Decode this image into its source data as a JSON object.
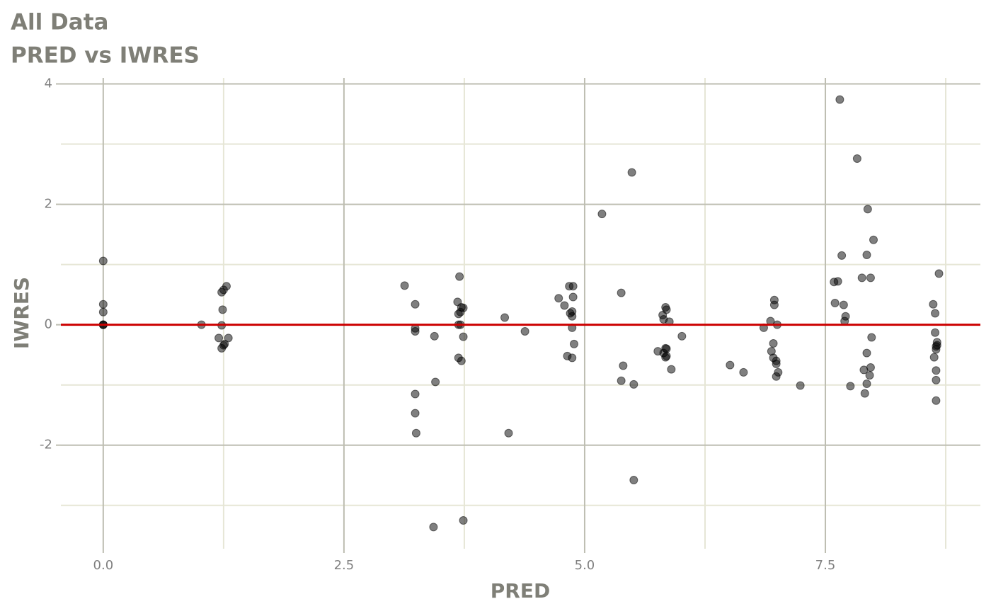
{
  "chart_data": {
    "type": "scatter",
    "title": "All Data",
    "subtitle": "PRED vs IWRES",
    "x_label": "PRED",
    "y_label": "IWRES",
    "xlim": [
      -0.44,
      9.11
    ],
    "ylim": [
      -3.72,
      4.1
    ],
    "xticks": [
      {
        "value": 0,
        "label": "0.0"
      },
      {
        "value": 2.5,
        "label": "2.5"
      },
      {
        "value": 5,
        "label": "5.0"
      },
      {
        "value": 7.5,
        "label": "7.5"
      }
    ],
    "yticks": [
      -2,
      0,
      2,
      4
    ],
    "xminor_ticks": [
      1.25,
      3.75,
      6.25,
      8.75
    ],
    "yminor_ticks": [
      -3,
      -1,
      1,
      3
    ],
    "grid": true,
    "color": "#000000",
    "opacity": 0.5,
    "hline": {
      "value": 0,
      "color": "#cc0000"
    },
    "x": [
      0,
      0,
      0,
      0,
      0,
      0,
      1.02,
      1.23,
      1.25,
      1.28,
      1.24,
      1.23,
      1.2,
      1.23,
      1.26,
      1.25,
      1.3,
      3.13,
      3.24,
      3.24,
      3.24,
      3.24,
      3.24,
      3.25,
      3.44,
      3.45,
      3.43,
      3.7,
      3.68,
      3.69,
      3.71,
      3.72,
      3.74,
      3.69,
      3.71,
      3.74,
      3.69,
      3.72,
      3.74,
      4.17,
      4.21,
      4.38,
      4.73,
      4.79,
      4.84,
      4.88,
      4.88,
      4.87,
      4.85,
      4.87,
      4.87,
      4.89,
      4.82,
      4.87,
      5.18,
      5.49,
      5.38,
      5.4,
      5.38,
      5.51,
      5.51,
      5.81,
      5.82,
      5.84,
      5.85,
      5.88,
      6.01,
      5.76,
      5.84,
      5.85,
      5.82,
      5.85,
      5.84,
      5.9,
      6.51,
      6.65,
      6.86,
      6.93,
      6.97,
      6.97,
      7.0,
      6.96,
      6.94,
      6.96,
      6.99,
      6.99,
      7.01,
      6.99,
      7.24,
      7.65,
      7.83,
      7.94,
      8.0,
      7.67,
      7.93,
      7.59,
      7.63,
      7.88,
      7.97,
      7.6,
      7.69,
      7.71,
      7.7,
      7.98,
      7.93,
      7.97,
      7.9,
      7.96,
      7.76,
      7.93,
      7.91,
      8.68,
      8.62,
      8.64,
      8.64,
      8.66,
      8.66,
      8.65,
      8.65,
      8.63,
      8.65,
      8.65,
      8.65
    ],
    "values": [
      1.06,
      0.34,
      0.21,
      0,
      0,
      0,
      0,
      0.54,
      0.58,
      0.64,
      0.25,
      -0.01,
      -0.22,
      -0.39,
      -0.32,
      -0.34,
      -0.22,
      0.65,
      0.34,
      -0.06,
      -0.11,
      -1.15,
      -1.47,
      -1.8,
      -0.19,
      -0.95,
      -3.36,
      0.8,
      0.38,
      0.18,
      0.21,
      0.29,
      0.28,
      0,
      0,
      -0.2,
      -0.55,
      -0.6,
      -3.25,
      0.12,
      -1.8,
      -0.11,
      0.44,
      0.32,
      0.64,
      0.64,
      0.46,
      0.22,
      0.19,
      0.14,
      -0.05,
      -0.32,
      -0.52,
      -0.55,
      1.84,
      2.53,
      0.53,
      -0.68,
      -0.93,
      -0.99,
      -2.58,
      0.16,
      0.09,
      0.29,
      0.25,
      0.05,
      -0.19,
      -0.44,
      -0.39,
      -0.4,
      -0.47,
      -0.52,
      -0.54,
      -0.74,
      -0.67,
      -0.79,
      -0.05,
      0.06,
      0.41,
      0.33,
      0,
      -0.31,
      -0.44,
      -0.55,
      -0.6,
      -0.65,
      -0.79,
      -0.86,
      -1.01,
      3.74,
      2.76,
      1.92,
      1.41,
      1.15,
      1.16,
      0.71,
      0.72,
      0.78,
      0.78,
      0.36,
      0.33,
      0.14,
      0.06,
      -0.21,
      -0.47,
      -0.71,
      -0.75,
      -0.84,
      -1.02,
      -0.98,
      -1.14,
      0.85,
      0.34,
      0.19,
      -0.13,
      -0.29,
      -0.34,
      -0.36,
      -0.41,
      -0.54,
      -0.76,
      -0.92,
      -1.26
    ]
  }
}
